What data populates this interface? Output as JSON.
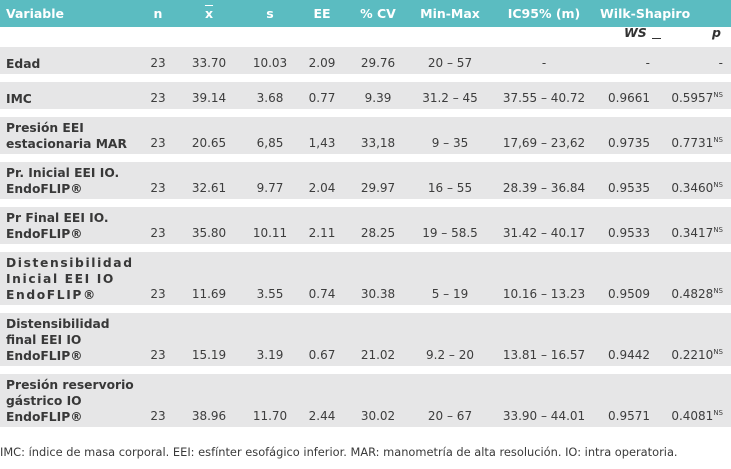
{
  "table": {
    "headers": {
      "variable": "Variable",
      "n": "n",
      "mean": "x",
      "sd": "s",
      "ee": "EE",
      "cv": "% CV",
      "minmax": "Min-Max",
      "ic95": "IC95% (m)",
      "wilk": "Wilk-Shapiro"
    },
    "subheaders": {
      "ws": "WS",
      "p": "p"
    },
    "rows": [
      {
        "variable": "Edad",
        "n": "23",
        "mean": "33.70",
        "sd": "10.03",
        "ee": "2.09",
        "cv": "29.76",
        "minmax": "20 – 57",
        "ic95": "-",
        "ws": "-",
        "p": "-",
        "sig": ""
      },
      {
        "variable": "IMC",
        "n": "23",
        "mean": "39.14",
        "sd": "3.68",
        "ee": "0.77",
        "cv": "9.39",
        "minmax": "31.2 – 45",
        "ic95": "37.55 – 40.72",
        "ws": "0.9661",
        "p": "0.5957",
        "sig": "NS"
      },
      {
        "variable": "Presión EEI estacionaria MAR",
        "n": "23",
        "mean": "20.65",
        "sd": "6,85",
        "ee": "1,43",
        "cv": "33,18",
        "minmax": "9 – 35",
        "ic95": "17,69 – 23,62",
        "ws": "0.9735",
        "p": "0.7731",
        "sig": "NS"
      },
      {
        "variable": "Pr. Inicial EEI IO. EndoFLIP®",
        "n": "23",
        "mean": "32.61",
        "sd": "9.77",
        "ee": "2.04",
        "cv": "29.97",
        "minmax": "16 – 55",
        "ic95": "28.39 – 36.84",
        "ws": "0.9535",
        "p": "0.3460",
        "sig": "NS"
      },
      {
        "variable": "Pr Final EEI IO. EndoFLIP®",
        "n": "23",
        "mean": "35.80",
        "sd": "10.11",
        "ee": "2.11",
        "cv": "28.25",
        "minmax": "19 – 58.5",
        "ic95": "31.42 – 40.17",
        "ws": "0.9533",
        "p": "0.3417",
        "sig": "NS"
      },
      {
        "variable": "Distensibilidad Inicial EEI IO EndoFLIP®",
        "n": "23",
        "mean": "11.69",
        "sd": "3.55",
        "ee": "0.74",
        "cv": "30.38",
        "minmax": "5 – 19",
        "ic95": "10.16 – 13.23",
        "ws": "0.9509",
        "p": "0.4828",
        "sig": "NS"
      },
      {
        "variable": "Distensibilidad final EEI IO EndoFLIP®",
        "n": "23",
        "mean": "15.19",
        "sd": "3.19",
        "ee": "0.67",
        "cv": "21.02",
        "minmax": "9.2 – 20",
        "ic95": "13.81 – 16.57",
        "ws": "0.9442",
        "p": "0.2210",
        "sig": "NS"
      },
      {
        "variable": "Presión reservorio gástrico IO EndoFLIP®",
        "n": "23",
        "mean": "38.96",
        "sd": "11.70",
        "ee": "2.44",
        "cv": "30.02",
        "minmax": "20 – 67",
        "ic95": "33.90 – 44.01",
        "ws": "0.9571",
        "p": "0.4081",
        "sig": "NS"
      }
    ]
  },
  "footnote": "IMC: índice de masa corporal. EEI: esfínter esofágico inferior. MAR: manometría de alta resolución. IO: intra operatoria."
}
